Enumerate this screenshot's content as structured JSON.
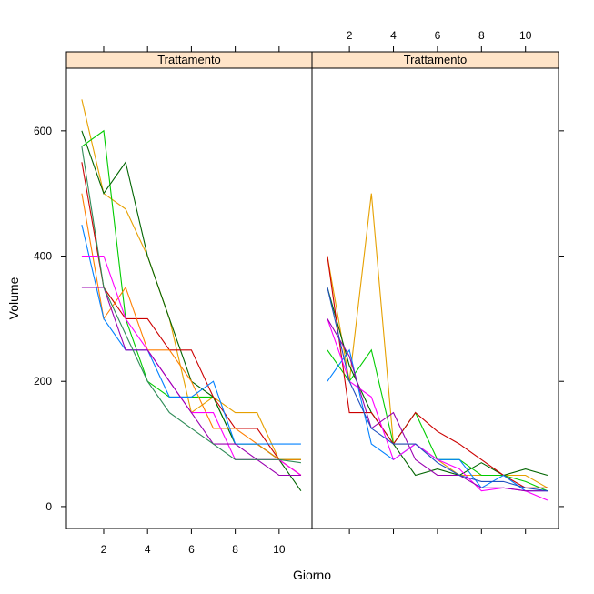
{
  "chart_data": {
    "type": "line",
    "xlabel": "Giorno",
    "ylabel": "Volume",
    "xlim": [
      0.3,
      11.5
    ],
    "ylim": [
      -35,
      700
    ],
    "x_ticks": [
      2,
      4,
      6,
      8,
      10
    ],
    "y_ticks": [
      0,
      200,
      400,
      600
    ],
    "strip_color": "#ffe4c8",
    "strip_border": "#ff7f00",
    "panels": [
      {
        "strip_label": "Trattamento",
        "series": [
          {
            "color": "#e6a000",
            "values": [
              [
                1,
                650
              ],
              [
                2,
                500
              ],
              [
                3,
                475
              ],
              [
                4,
                400
              ],
              [
                5,
                300
              ],
              [
                6,
                150
              ],
              [
                7,
                175
              ],
              [
                8,
                150
              ],
              [
                9,
                150
              ],
              [
                10,
                75
              ],
              [
                11,
                75
              ]
            ]
          },
          {
            "color": "#00cc00",
            "values": [
              [
                1,
                575
              ],
              [
                2,
                600
              ],
              [
                3,
                300
              ],
              [
                4,
                200
              ],
              [
                5,
                175
              ],
              [
                6,
                175
              ],
              [
                7,
                175
              ],
              [
                8,
                100
              ],
              [
                9,
                100
              ],
              [
                10,
                75
              ],
              [
                11,
                75
              ]
            ]
          },
          {
            "color": "#006400",
            "values": [
              [
                1,
                600
              ],
              [
                2,
                500
              ],
              [
                3,
                550
              ],
              [
                4,
                400
              ],
              [
                5,
                300
              ],
              [
                6,
                200
              ],
              [
                7,
                175
              ],
              [
                8,
                100
              ],
              [
                9,
                100
              ],
              [
                10,
                75
              ],
              [
                11,
                25
              ]
            ]
          },
          {
            "color": "#cc0000",
            "values": [
              [
                1,
                550
              ],
              [
                2,
                350
              ],
              [
                3,
                300
              ],
              [
                4,
                300
              ],
              [
                5,
                250
              ],
              [
                6,
                250
              ],
              [
                7,
                175
              ],
              [
                8,
                125
              ],
              [
                9,
                125
              ],
              [
                10,
                75
              ],
              [
                11,
                50
              ]
            ]
          },
          {
            "color": "#ff7f00",
            "values": [
              [
                1,
                500
              ],
              [
                2,
                300
              ],
              [
                3,
                350
              ],
              [
                4,
                250
              ],
              [
                5,
                250
              ],
              [
                6,
                200
              ],
              [
                7,
                125
              ],
              [
                8,
                125
              ],
              [
                9,
                100
              ],
              [
                10,
                75
              ],
              [
                11,
                75
              ]
            ]
          },
          {
            "color": "#0080ff",
            "values": [
              [
                1,
                450
              ],
              [
                2,
                300
              ],
              [
                3,
                250
              ],
              [
                4,
                250
              ],
              [
                5,
                175
              ],
              [
                6,
                175
              ],
              [
                7,
                200
              ],
              [
                8,
                100
              ],
              [
                9,
                100
              ],
              [
                10,
                100
              ],
              [
                11,
                100
              ]
            ]
          },
          {
            "color": "#ff00ff",
            "values": [
              [
                1,
                400
              ],
              [
                2,
                400
              ],
              [
                3,
                300
              ],
              [
                4,
                250
              ],
              [
                5,
                200
              ],
              [
                6,
                150
              ],
              [
                7,
                150
              ],
              [
                8,
                75
              ],
              [
                9,
                75
              ],
              [
                10,
                75
              ],
              [
                11,
                50
              ]
            ]
          },
          {
            "color": "#9a00b0",
            "values": [
              [
                1,
                350
              ],
              [
                2,
                350
              ],
              [
                3,
                250
              ],
              [
                4,
                250
              ],
              [
                5,
                200
              ],
              [
                6,
                150
              ],
              [
                7,
                100
              ],
              [
                8,
                100
              ],
              [
                9,
                75
              ],
              [
                10,
                50
              ],
              [
                11,
                50
              ]
            ]
          },
          {
            "color": "#2e8b57",
            "values": [
              [
                1,
                575
              ],
              [
                2,
                350
              ],
              [
                3,
                275
              ],
              [
                4,
                200
              ],
              [
                5,
                150
              ],
              [
                6,
                125
              ],
              [
                7,
                100
              ],
              [
                8,
                75
              ],
              [
                9,
                75
              ],
              [
                10,
                75
              ],
              [
                11,
                70
              ]
            ]
          }
        ]
      },
      {
        "strip_label": "Trattamento",
        "series": [
          {
            "color": "#e6a000",
            "values": [
              [
                1,
                400
              ],
              [
                2,
                200
              ],
              [
                3,
                500
              ],
              [
                4,
                100
              ],
              [
                5,
                100
              ],
              [
                6,
                75
              ],
              [
                7,
                50
              ],
              [
                8,
                50
              ],
              [
                9,
                50
              ],
              [
                10,
                50
              ],
              [
                11,
                30
              ]
            ]
          },
          {
            "color": "#00cc00",
            "values": [
              [
                1,
                250
              ],
              [
                2,
                200
              ],
              [
                3,
                250
              ],
              [
                4,
                100
              ],
              [
                5,
                150
              ],
              [
                6,
                75
              ],
              [
                7,
                75
              ],
              [
                8,
                50
              ],
              [
                9,
                50
              ],
              [
                10,
                40
              ],
              [
                11,
                25
              ]
            ]
          },
          {
            "color": "#006400",
            "values": [
              [
                1,
                350
              ],
              [
                2,
                225
              ],
              [
                3,
                150
              ],
              [
                4,
                100
              ],
              [
                5,
                50
              ],
              [
                6,
                60
              ],
              [
                7,
                50
              ],
              [
                8,
                70
              ],
              [
                9,
                50
              ],
              [
                10,
                60
              ],
              [
                11,
                50
              ]
            ]
          },
          {
            "color": "#cc0000",
            "values": [
              [
                1,
                400
              ],
              [
                2,
                150
              ],
              [
                3,
                150
              ],
              [
                4,
                100
              ],
              [
                5,
                150
              ],
              [
                6,
                120
              ],
              [
                7,
                100
              ],
              [
                8,
                75
              ],
              [
                9,
                50
              ],
              [
                10,
                30
              ],
              [
                11,
                30
              ]
            ]
          },
          {
            "color": "#0080ff",
            "values": [
              [
                1,
                200
              ],
              [
                2,
                250
              ],
              [
                3,
                100
              ],
              [
                4,
                75
              ],
              [
                5,
                100
              ],
              [
                6,
                75
              ],
              [
                7,
                75
              ],
              [
                8,
                30
              ],
              [
                9,
                50
              ],
              [
                10,
                25
              ],
              [
                11,
                25
              ]
            ]
          },
          {
            "color": "#ff00ff",
            "values": [
              [
                1,
                300
              ],
              [
                2,
                200
              ],
              [
                3,
                175
              ],
              [
                4,
                75
              ],
              [
                5,
                100
              ],
              [
                6,
                75
              ],
              [
                7,
                60
              ],
              [
                8,
                25
              ],
              [
                9,
                30
              ],
              [
                10,
                25
              ],
              [
                11,
                10
              ]
            ]
          },
          {
            "color": "#9a00b0",
            "values": [
              [
                1,
                300
              ],
              [
                2,
                240
              ],
              [
                3,
                125
              ],
              [
                4,
                150
              ],
              [
                5,
                75
              ],
              [
                6,
                50
              ],
              [
                7,
                50
              ],
              [
                8,
                30
              ],
              [
                9,
                30
              ],
              [
                10,
                25
              ],
              [
                11,
                25
              ]
            ]
          },
          {
            "color": "#1f4fbf",
            "values": [
              [
                1,
                350
              ],
              [
                2,
                200
              ],
              [
                3,
                125
              ],
              [
                4,
                100
              ],
              [
                5,
                100
              ],
              [
                6,
                70
              ],
              [
                7,
                50
              ],
              [
                8,
                40
              ],
              [
                9,
                40
              ],
              [
                10,
                30
              ],
              [
                11,
                25
              ]
            ]
          }
        ]
      }
    ]
  }
}
